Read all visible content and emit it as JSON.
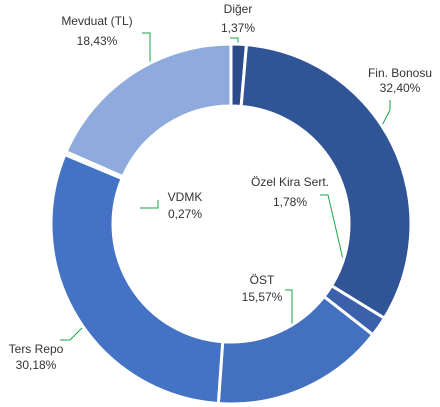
{
  "chart_data": {
    "type": "donut",
    "categories": [
      "Diğer",
      "Fin. Bonosu",
      "Özel Kira Sert.",
      "ÖST",
      "Ters Repo",
      "VDMK",
      "Mevduat (TL)"
    ],
    "values": [
      1.37,
      32.4,
      1.78,
      15.57,
      30.18,
      0.27,
      18.43
    ],
    "value_labels": [
      "1,37%",
      "32,40%",
      "1,78%",
      "15,57%",
      "30,18%",
      "0,27%",
      "18,43%"
    ],
    "colors": [
      "#2c4b8c",
      "#2f5597",
      "#3b61ab",
      "#4470c0",
      "#4472c4",
      "#7f9bd6",
      "#8faadc"
    ]
  }
}
